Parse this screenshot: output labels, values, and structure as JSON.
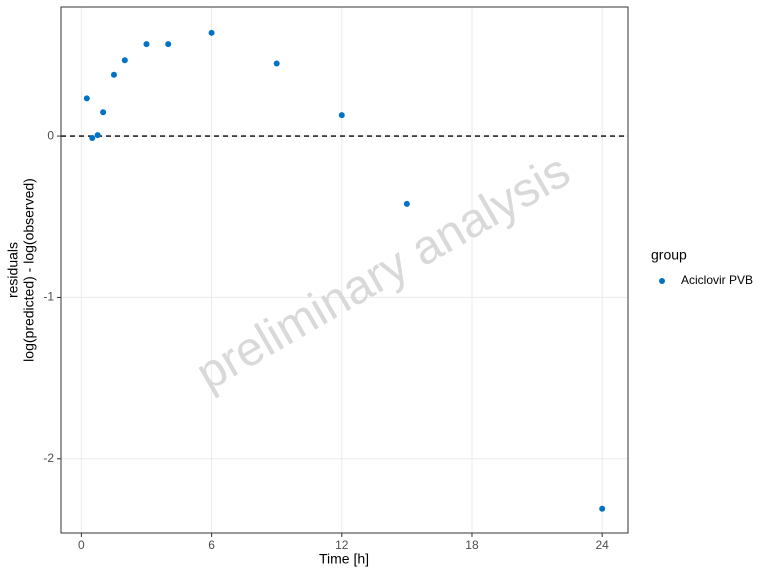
{
  "chart_data": {
    "type": "scatter",
    "x_label": "Time [h]",
    "y_label": [
      "residuals",
      "log(predicted) - log(observed)"
    ],
    "watermark": "preliminary analysis",
    "legend_title": "group",
    "legend_position": "right",
    "series": [
      {
        "name": "Aciclovir PVB",
        "color": "#0072c6",
        "x": [
          0.25,
          0.5,
          0.75,
          1,
          1.5,
          2,
          3,
          4,
          6,
          9,
          12,
          15,
          24
        ],
        "values": [
          0.234,
          -0.012,
          0.006,
          0.148,
          0.38,
          0.47,
          0.57,
          0.57,
          0.64,
          0.45,
          0.13,
          -0.42,
          -2.31
        ]
      }
    ],
    "hline": 0,
    "xlim": [
      -0.94,
      25.19
    ],
    "xticks": [
      0,
      6,
      12,
      18,
      24
    ],
    "ylim": [
      -2.46,
      0.8
    ],
    "yticks": [
      -2,
      -1,
      0
    ],
    "grid": true
  }
}
